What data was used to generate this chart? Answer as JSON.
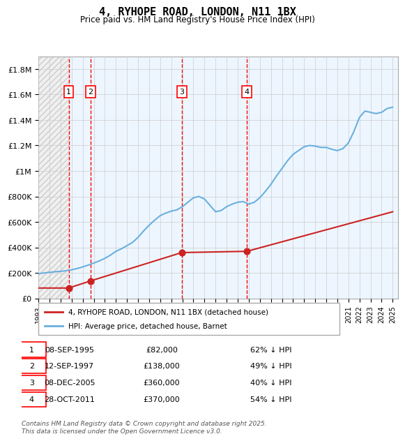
{
  "title": "4, RYHOPE ROAD, LONDON, N11 1BX",
  "subtitle": "Price paid vs. HM Land Registry's House Price Index (HPI)",
  "xlabel": "",
  "ylabel": "",
  "ylim": [
    0,
    1900000
  ],
  "yticks": [
    0,
    200000,
    400000,
    600000,
    800000,
    1000000,
    1200000,
    1400000,
    1600000,
    1800000
  ],
  "ytick_labels": [
    "£0",
    "£200K",
    "£400K",
    "£600K",
    "£800K",
    "£1M",
    "£1.2M",
    "£1.4M",
    "£1.6M",
    "£1.8M"
  ],
  "sales": [
    {
      "num": 1,
      "date": "1995-09-08",
      "price": 82000,
      "label": "08-SEP-1995",
      "pct": "62% ↓ HPI"
    },
    {
      "num": 2,
      "date": "1997-09-12",
      "price": 138000,
      "label": "12-SEP-1997",
      "pct": "49% ↓ HPI"
    },
    {
      "num": 3,
      "date": "2005-12-08",
      "price": 360000,
      "label": "08-DEC-2005",
      "pct": "40% ↓ HPI"
    },
    {
      "num": 4,
      "date": "2011-10-28",
      "price": 370000,
      "label": "28-OCT-2011",
      "pct": "54% ↓ HPI"
    }
  ],
  "hpi_color": "#6ab0de",
  "price_color": "#cc2222",
  "background_hatched_color": "#e8e8e8",
  "sale_region_color": "#ddeeff",
  "legend_box_label1": "4, RYHOPE ROAD, LONDON, N11 1BX (detached house)",
  "legend_box_label2": "HPI: Average price, detached house, Barnet",
  "footer": "Contains HM Land Registry data © Crown copyright and database right 2025.\nThis data is licensed under the Open Government Licence v3.0.",
  "xstart_year": 1993,
  "xend_year": 2025
}
